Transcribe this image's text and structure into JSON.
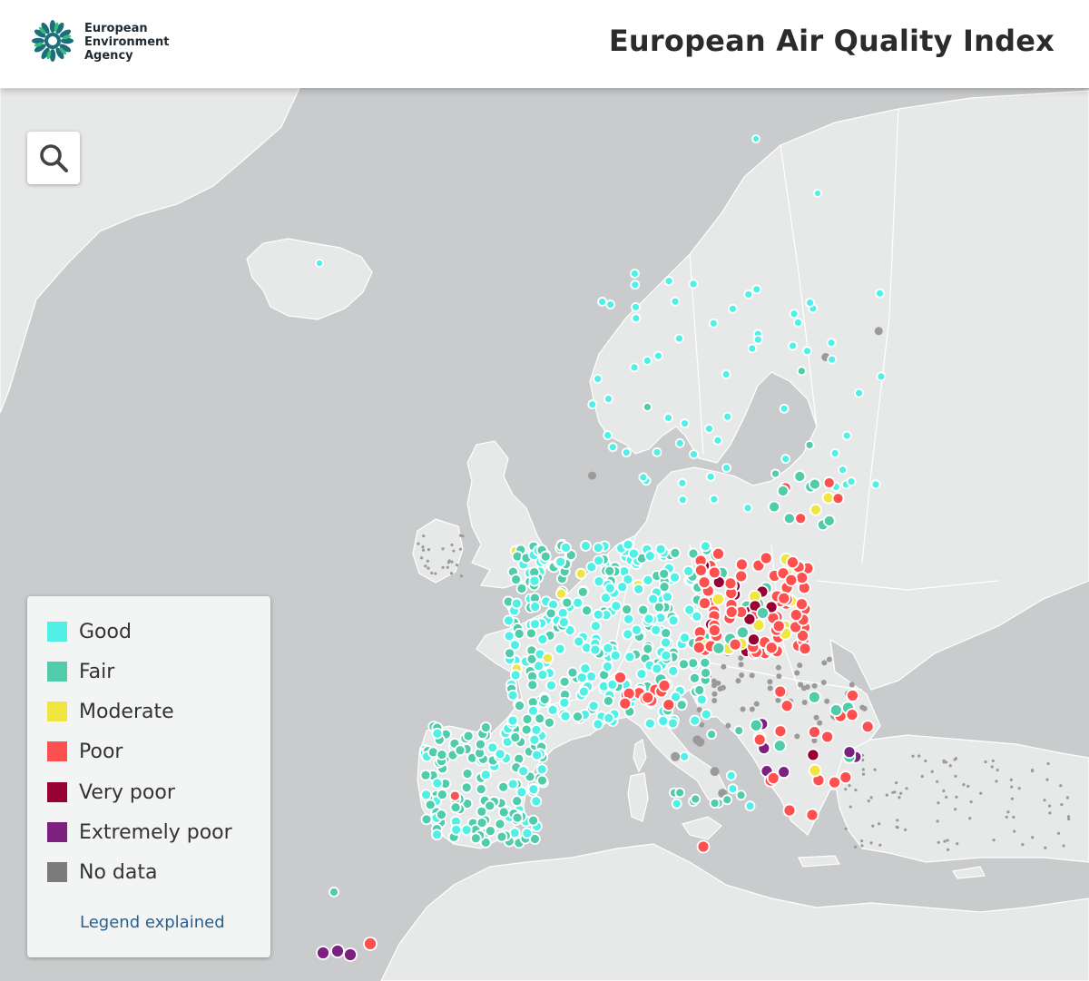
{
  "header": {
    "org_name": [
      "European",
      "Environment",
      "Agency"
    ],
    "title": "European Air Quality Index"
  },
  "search": {
    "icon": "search-icon"
  },
  "legend": {
    "items": [
      {
        "label": "Good",
        "color": "#50f0e6"
      },
      {
        "label": "Fair",
        "color": "#50ccaa"
      },
      {
        "label": "Moderate",
        "color": "#f0e641"
      },
      {
        "label": "Poor",
        "color": "#ff5050"
      },
      {
        "label": "Very poor",
        "color": "#960032"
      },
      {
        "label": "Extremely poor",
        "color": "#7d2181"
      },
      {
        "label": "No data",
        "color": "#7b7b7b"
      }
    ],
    "link": "Legend explained"
  },
  "colors": {
    "sea": "#c9cbcc",
    "land": "#e7e8e8",
    "border": "#ffffff"
  }
}
